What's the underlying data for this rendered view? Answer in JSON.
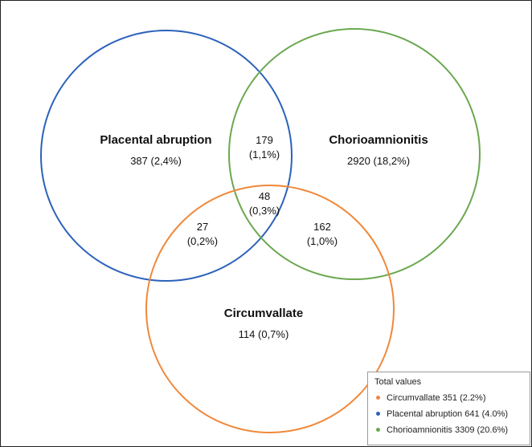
{
  "sets": [
    {
      "id": "placental",
      "name": "Placental abruption",
      "value": "387 (2,4%)",
      "color": "#2c62bb"
    },
    {
      "id": "chorio",
      "name": "Chorioamnionitis",
      "value": "2920 (18,2%)",
      "color": "#6aa84f"
    },
    {
      "id": "circ",
      "name": "Circumvallate",
      "value": "114 (0,7%)",
      "color": "#f0883a"
    }
  ],
  "overlaps": {
    "placental_chorio": {
      "count": "179",
      "pct": "(1,1%)"
    },
    "all_three": {
      "count": "48",
      "pct": "(0,3%)"
    },
    "placental_circ": {
      "count": "27",
      "pct": "(0,2%)"
    },
    "chorio_circ": {
      "count": "162",
      "pct": "(1,0%)"
    }
  },
  "legend": {
    "title": "Total values",
    "items": [
      {
        "label": "Circumvallate 351 (2.2%)",
        "color": "#f0883a"
      },
      {
        "label": "Placental abruption 641 (4.0%)",
        "color": "#2c62bb"
      },
      {
        "label": "Chorioamnionitis 3309 (20.6%)",
        "color": "#6aa84f"
      }
    ]
  }
}
